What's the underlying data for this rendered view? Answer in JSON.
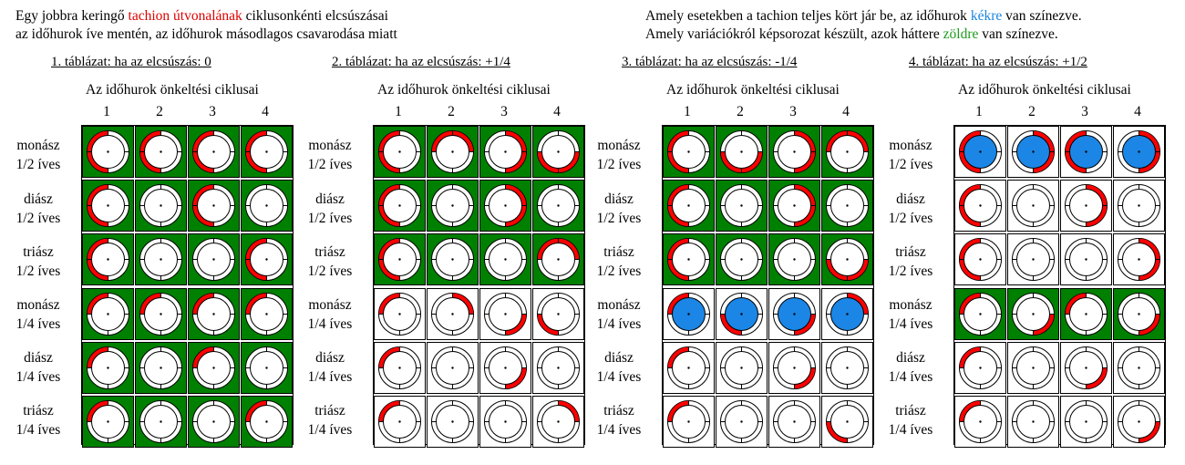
{
  "header": {
    "left_line1_pre": "Egy jobbra keringő ",
    "left_line1_red": "tachion útvonalának",
    "left_line1_post": " ciklusonkénti elcsúszásai",
    "left_line2": "az időhurok íve mentén, az időhurok másodlagos csavarodása miatt",
    "right_line1_pre": "Amely esetekben a tachion teljes kört jár be, az időhurok ",
    "right_line1_blue": "kékre",
    "right_line1_post": " van színezve.",
    "right_line2_pre": "Amely variációkról képsorozat készült, azok háttere ",
    "right_line2_green": "zöldre",
    "right_line2_post": " van színezve."
  },
  "colors": {
    "green": "#008000",
    "red": "#ff0000",
    "blue": "#1b86e6",
    "white": "#ffffff"
  },
  "subtitle": "Az időhurok önkeltési ciklusai",
  "column_labels": [
    "1",
    "2",
    "3",
    "4"
  ],
  "row_labels": [
    [
      "monász",
      "1/2 íves"
    ],
    [
      "diász",
      "1/2 íves"
    ],
    [
      "triász",
      "1/2 íves"
    ],
    [
      "monász",
      "1/4 íves"
    ],
    [
      "diász",
      "1/4 íves"
    ],
    [
      "triász",
      "1/4 íves"
    ]
  ],
  "tables": [
    {
      "title": "1. táblázat: ha az elcsúszás: 0",
      "rows": [
        {
          "bg": "green",
          "arcs": [
            [
              "left"
            ],
            [
              "left"
            ],
            [
              "left"
            ],
            [
              "left"
            ]
          ]
        },
        {
          "bg": "green",
          "arcs": [
            [
              "left"
            ],
            [],
            [
              "left"
            ],
            []
          ]
        },
        {
          "bg": "green",
          "arcs": [
            [
              "left"
            ],
            [],
            [],
            [
              "left"
            ]
          ]
        },
        {
          "bg": "green",
          "arcs": [
            [
              "ul"
            ],
            [
              "ul"
            ],
            [
              "ul"
            ],
            [
              "ul"
            ]
          ]
        },
        {
          "bg": "green",
          "arcs": [
            [
              "ul"
            ],
            [],
            [
              "ul"
            ],
            []
          ]
        },
        {
          "bg": "green",
          "arcs": [
            [
              "ul"
            ],
            [],
            [],
            [
              "ul"
            ]
          ]
        }
      ]
    },
    {
      "title": "2. táblázat: ha az elcsúszás: +1/4",
      "rows": [
        {
          "bg": "green",
          "arcs": [
            [
              "left"
            ],
            [
              "top"
            ],
            [
              "right"
            ],
            [
              "bottom"
            ]
          ]
        },
        {
          "bg": "green",
          "arcs": [
            [
              "left"
            ],
            [],
            [
              "right"
            ],
            []
          ]
        },
        {
          "bg": "green",
          "arcs": [
            [
              "left"
            ],
            [],
            [],
            [
              "top"
            ]
          ]
        },
        {
          "bg": "white",
          "arcs": [
            [
              "ul"
            ],
            [
              "ur"
            ],
            [
              "lr"
            ],
            [
              "ll"
            ]
          ]
        },
        {
          "bg": "white",
          "arcs": [
            [
              "ul"
            ],
            [],
            [
              "lr"
            ],
            []
          ]
        },
        {
          "bg": "white",
          "arcs": [
            [
              "ul"
            ],
            [],
            [],
            [
              "ur"
            ]
          ]
        }
      ]
    },
    {
      "title": "3. táblázat: ha az elcsúszás: -1/4",
      "rows": [
        {
          "bg": "green",
          "arcs": [
            [
              "left"
            ],
            [
              "bottom"
            ],
            [
              "right"
            ],
            [
              "top"
            ]
          ]
        },
        {
          "bg": "green",
          "arcs": [
            [
              "left"
            ],
            [],
            [
              "right"
            ],
            []
          ]
        },
        {
          "bg": "green",
          "arcs": [
            [
              "left"
            ],
            [],
            [],
            [
              "bottom"
            ]
          ]
        },
        {
          "bg": "white",
          "arcs": [
            [
              "ul",
              "blue"
            ],
            [
              "ll",
              "blue"
            ],
            [
              "lr",
              "blue"
            ],
            [
              "ur",
              "blue"
            ]
          ]
        },
        {
          "bg": "white",
          "arcs": [
            [
              "ul"
            ],
            [],
            [
              "lr"
            ],
            []
          ]
        },
        {
          "bg": "white",
          "arcs": [
            [
              "ul"
            ],
            [],
            [],
            [
              "ll"
            ]
          ]
        }
      ]
    },
    {
      "title": "4. táblázat: ha az elcsúszás: +1/2",
      "rows": [
        {
          "bg": "white",
          "arcs": [
            [
              "left",
              "blue"
            ],
            [
              "right",
              "blue"
            ],
            [
              "left",
              "blue"
            ],
            [
              "right",
              "blue"
            ]
          ]
        },
        {
          "bg": "white",
          "arcs": [
            [
              "left"
            ],
            [],
            [
              "right"
            ],
            []
          ]
        },
        {
          "bg": "white",
          "arcs": [
            [
              "left"
            ],
            [],
            [],
            [
              "right"
            ]
          ]
        },
        {
          "bg": "green",
          "arcs": [
            [
              "ul"
            ],
            [
              "lr"
            ],
            [
              "ul"
            ],
            [
              "lr"
            ]
          ]
        },
        {
          "bg": "white",
          "arcs": [
            [
              "ul"
            ],
            [],
            [
              "lr"
            ],
            []
          ]
        },
        {
          "bg": "white",
          "arcs": [
            [
              "ul"
            ],
            [],
            [],
            [
              "lr"
            ]
          ]
        }
      ]
    }
  ]
}
